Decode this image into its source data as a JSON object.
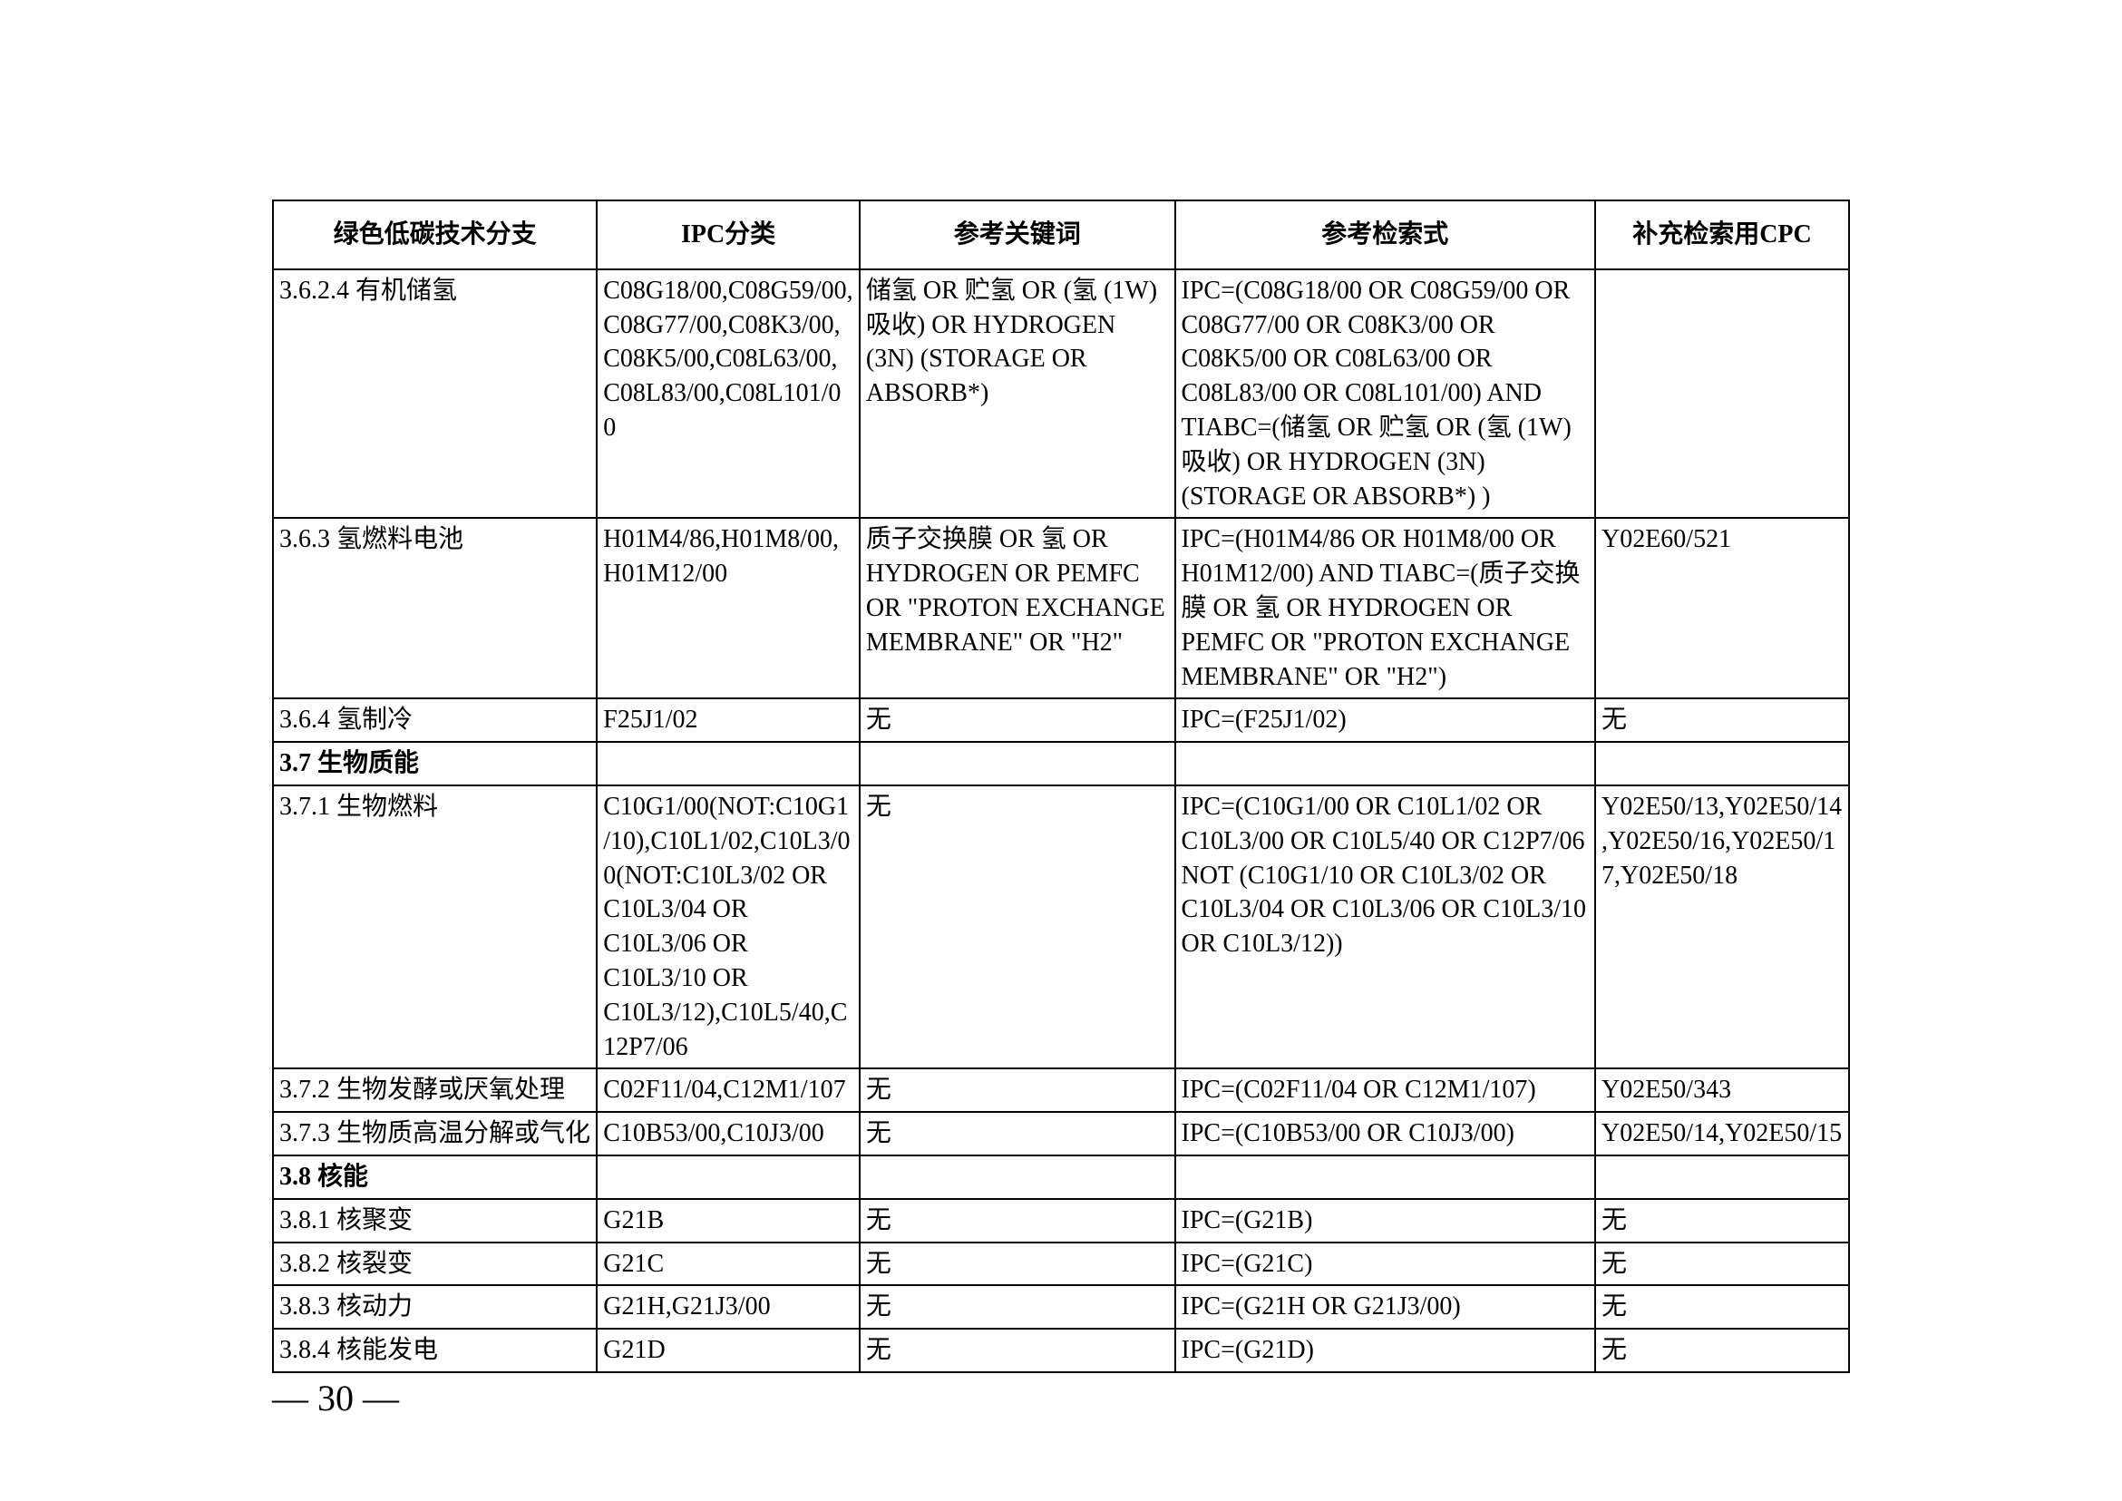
{
  "page_number": "— 30 —",
  "headers": {
    "col1": "绿色低碳技术分支",
    "col2": "IPC分类",
    "col3": "参考关键词",
    "col4": "参考检索式",
    "col5": "补充检索用CPC"
  },
  "rows": [
    {
      "branch": "3.6.2.4  有机储氢",
      "ipc": "C08G18/00,C08G59/00,C08G77/00,C08K3/00,C08K5/00,C08L63/00,C08L83/00,C08L101/00",
      "keywords": "储氢 OR 贮氢 OR (氢 (1W) 吸收) OR HYDROGEN (3N) (STORAGE OR ABSORB*)",
      "search": "IPC=(C08G18/00 OR C08G59/00 OR C08G77/00 OR C08K3/00 OR C08K5/00 OR C08L63/00 OR C08L83/00 OR C08L101/00) AND TIABC=(储氢 OR 贮氢 OR (氢 (1W) 吸收) OR HYDROGEN (3N) (STORAGE OR ABSORB*) )",
      "cpc": ""
    },
    {
      "branch": "3.6.3  氢燃料电池",
      "ipc": "H01M4/86,H01M8/00,H01M12/00",
      "keywords": "质子交换膜 OR 氢 OR HYDROGEN OR PEMFC OR \"PROTON EXCHANGE MEMBRANE\" OR \"H2\"",
      "search": "IPC=(H01M4/86 OR H01M8/00 OR H01M12/00) AND TIABC=(质子交换膜 OR 氢 OR HYDROGEN OR PEMFC OR \"PROTON EXCHANGE MEMBRANE\" OR \"H2\")",
      "cpc": "Y02E60/521"
    },
    {
      "branch": "3.6.4  氢制冷",
      "ipc": "F25J1/02",
      "keywords": "无",
      "search": "IPC=(F25J1/02)",
      "cpc": "无"
    },
    {
      "section": true,
      "branch": "3.7 生物质能",
      "ipc": "",
      "keywords": "",
      "search": "",
      "cpc": ""
    },
    {
      "branch": "3.7.1  生物燃料",
      "ipc": "C10G1/00(NOT:C10G1/10),C10L1/02,C10L3/00(NOT:C10L3/02 OR C10L3/04 OR C10L3/06 OR C10L3/10 OR C10L3/12),C10L5/40,C12P7/06",
      "keywords": "无",
      "search": "IPC=(C10G1/00 OR C10L1/02 OR C10L3/00 OR C10L5/40 OR C12P7/06 NOT (C10G1/10 OR C10L3/02 OR C10L3/04 OR C10L3/06 OR C10L3/10 OR C10L3/12))",
      "cpc": "Y02E50/13,Y02E50/14,Y02E50/16,Y02E50/17,Y02E50/18"
    },
    {
      "branch": "3.7.2  生物发酵或厌氧处理",
      "ipc": "C02F11/04,C12M1/107",
      "keywords": "无",
      "search": "IPC=(C02F11/04 OR C12M1/107)",
      "cpc": "Y02E50/343"
    },
    {
      "branch": "3.7.3  生物质高温分解或气化",
      "ipc": "C10B53/00,C10J3/00",
      "keywords": "无",
      "search": "IPC=(C10B53/00 OR C10J3/00)",
      "cpc": "Y02E50/14,Y02E50/15"
    },
    {
      "section": true,
      "branch": "3.8 核能",
      "ipc": "",
      "keywords": "",
      "search": "",
      "cpc": ""
    },
    {
      "branch": "3.8.1  核聚变",
      "ipc": "G21B",
      "keywords": "无",
      "search": "IPC=(G21B)",
      "cpc": "无"
    },
    {
      "branch": "3.8.2  核裂变",
      "ipc": "G21C",
      "keywords": "无",
      "search": "IPC=(G21C)",
      "cpc": "无"
    },
    {
      "branch": "3.8.3  核动力",
      "ipc": "G21H,G21J3/00",
      "keywords": "无",
      "search": "IPC=(G21H OR G21J3/00)",
      "cpc": "无"
    },
    {
      "branch": "3.8.4  核能发电",
      "ipc": "G21D",
      "keywords": "无",
      "search": "IPC=(G21D)",
      "cpc": "无"
    }
  ]
}
